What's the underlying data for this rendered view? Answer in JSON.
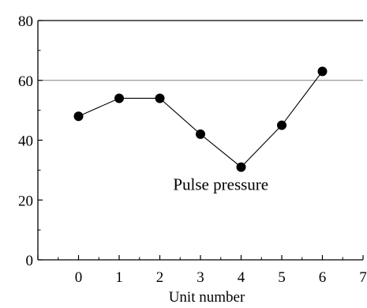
{
  "chart_data": {
    "type": "line",
    "title": "",
    "xlabel": "Unit number",
    "ylabel": "",
    "xlim": [
      -1,
      7
    ],
    "ylim": [
      0,
      80
    ],
    "x_ticks": [
      0,
      1,
      2,
      3,
      4,
      5,
      6,
      7
    ],
    "y_ticks": [
      0,
      20,
      40,
      60,
      80
    ],
    "x_tick_labels": [
      "0",
      "1",
      "2",
      "3",
      "4",
      "5",
      "6",
      "7"
    ],
    "y_tick_labels": [
      "0",
      "20",
      "40",
      "60",
      "80"
    ],
    "grid": false,
    "reference_line": {
      "y": 60,
      "color": "#808080"
    },
    "series": [
      {
        "x": [
          0,
          1,
          2,
          3,
          4,
          5,
          6
        ],
        "values": [
          48,
          54,
          54,
          42,
          31,
          45,
          63
        ],
        "color": "#000000",
        "marker": "circle"
      }
    ],
    "annotations": [
      {
        "text": "Pulse pressure",
        "x": 3.5,
        "y": 25
      }
    ]
  }
}
